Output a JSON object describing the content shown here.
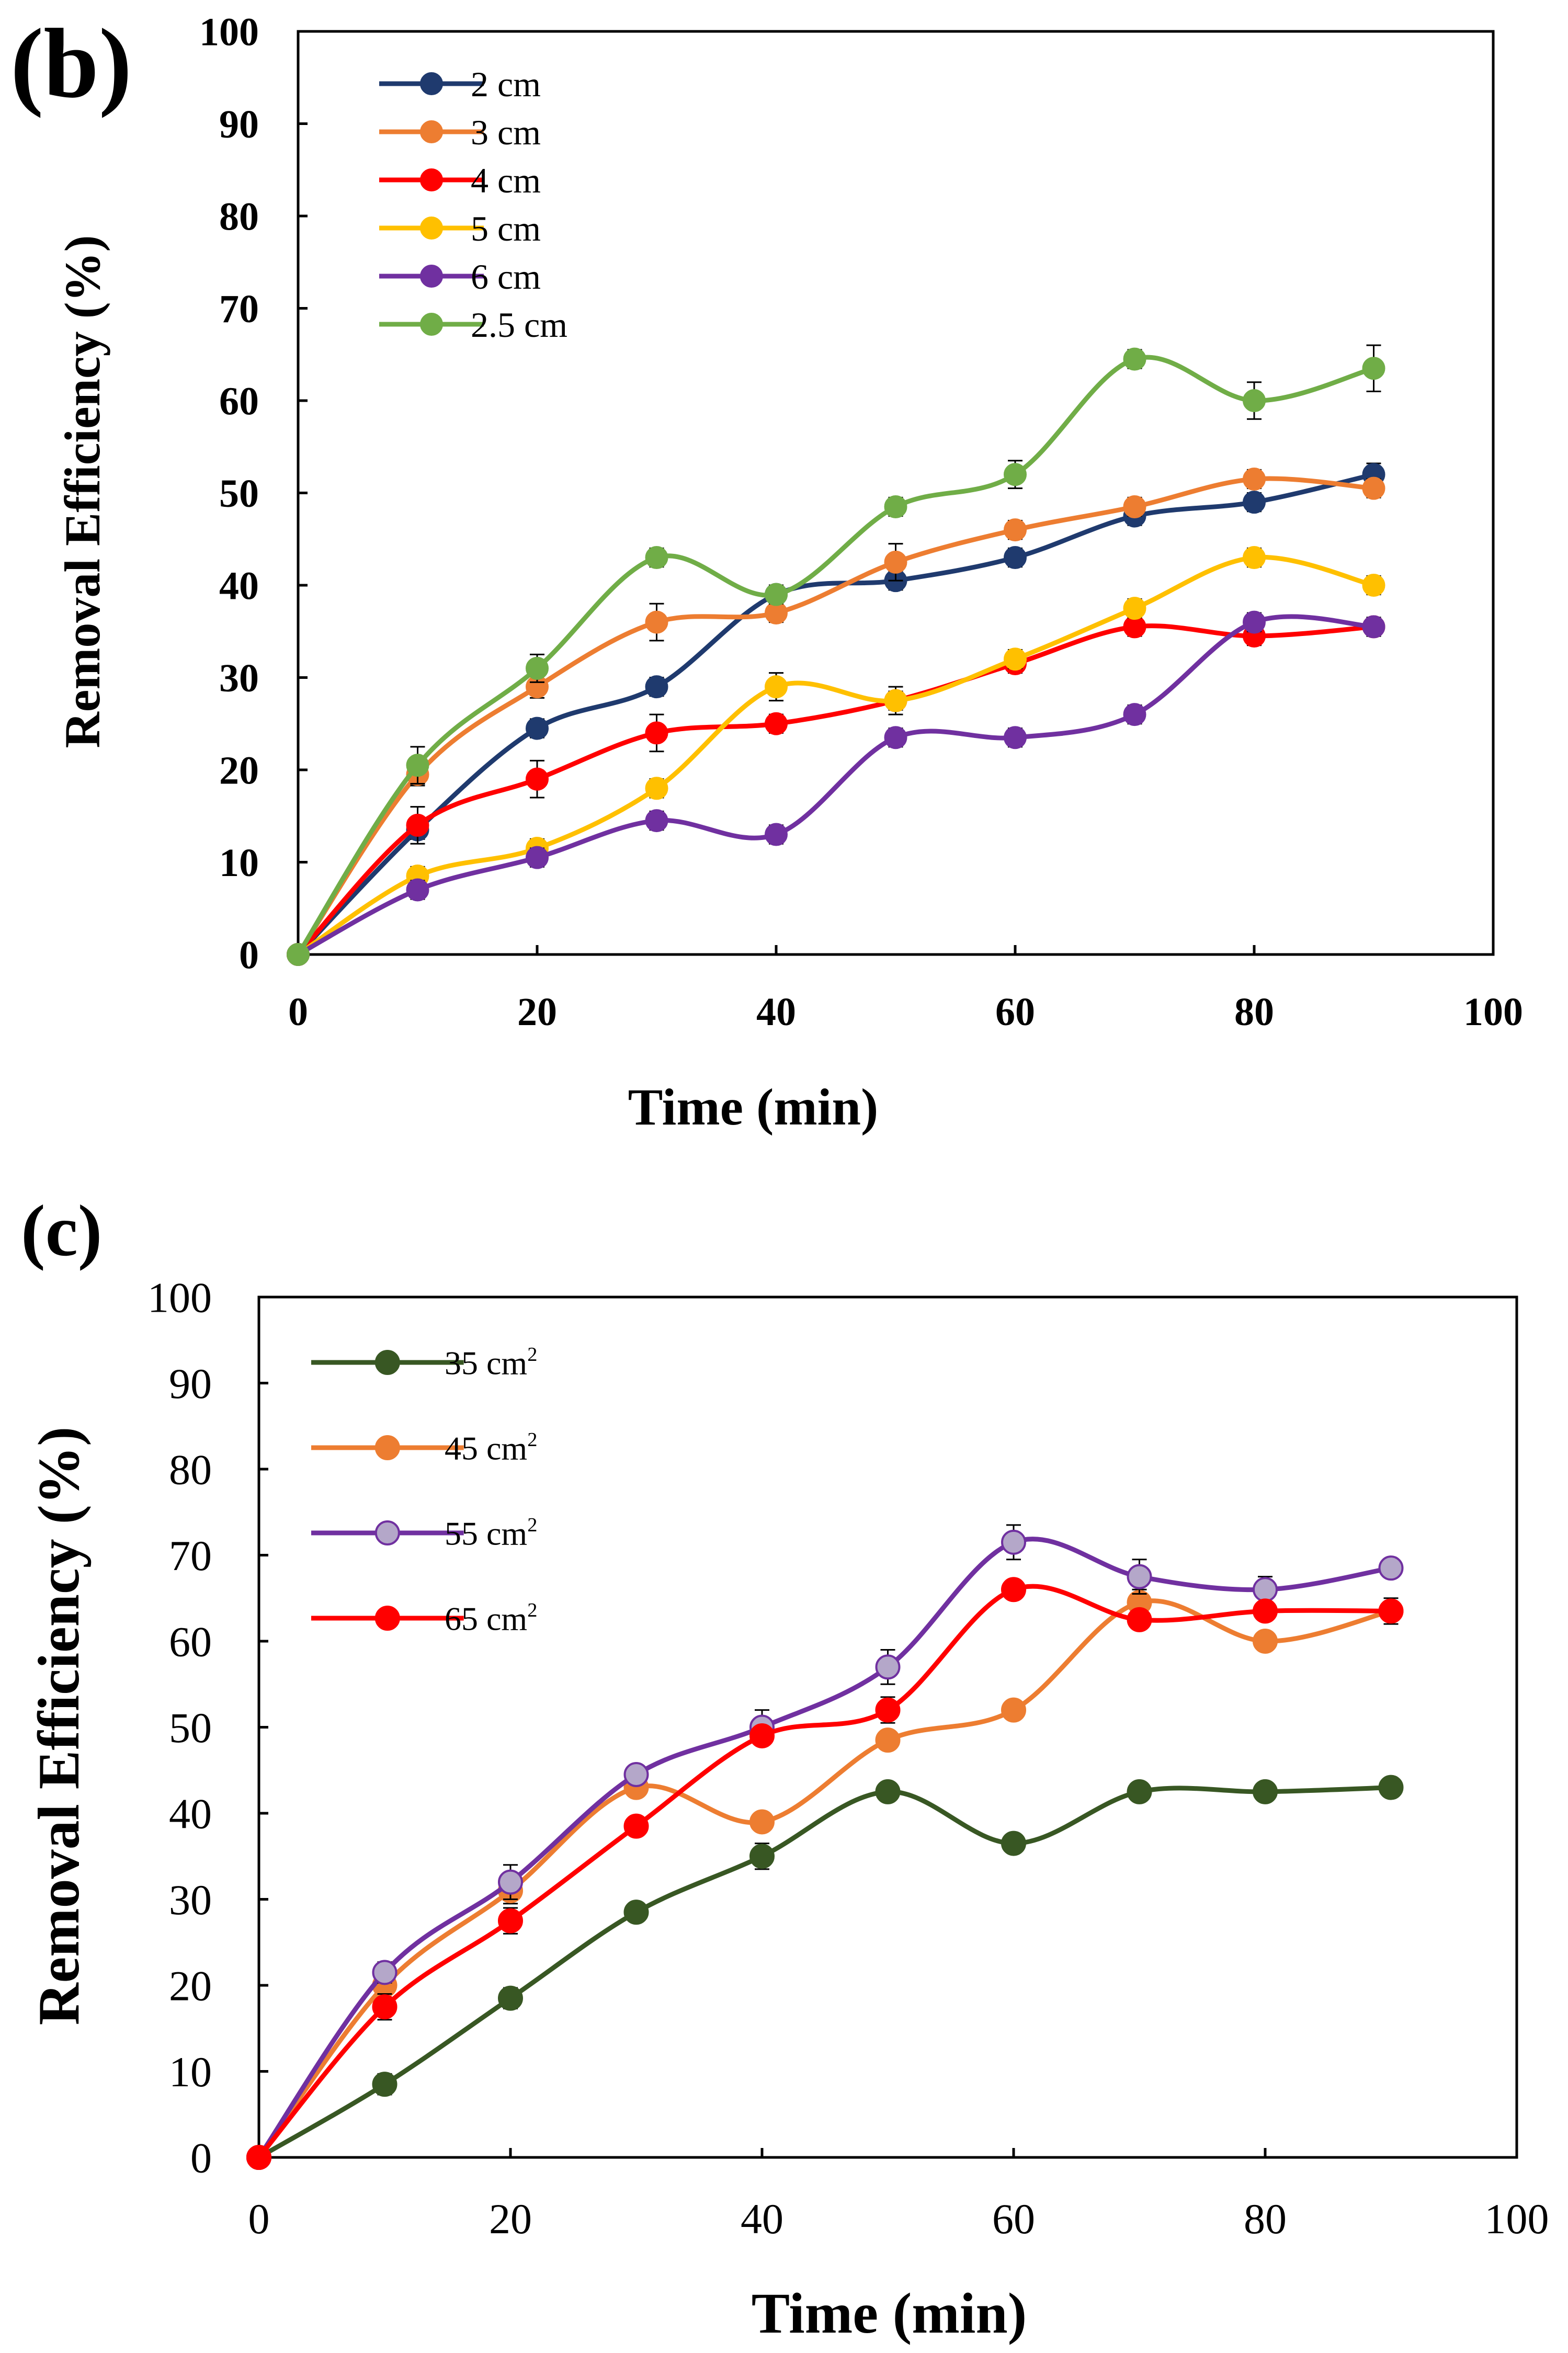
{
  "chart_data": [
    {
      "type": "line",
      "panel_label": "(b)",
      "xlabel": "Time (min)",
      "ylabel": "Removal Efficiency (%)",
      "xlim": [
        0,
        100
      ],
      "ylim": [
        0,
        100
      ],
      "xticks": [
        "0",
        "20",
        "40",
        "60",
        "80",
        "100"
      ],
      "yticks": [
        "0",
        "10",
        "20",
        "30",
        "40",
        "50",
        "60",
        "70",
        "80",
        "90",
        "100"
      ],
      "grid": false,
      "legend_position": "top-left",
      "x": [
        0,
        10,
        20,
        30,
        40,
        50,
        60,
        70,
        80,
        90
      ],
      "series": [
        {
          "name": "2 cm",
          "color": "#1f3a6e",
          "values": [
            0,
            13.5,
            24.5,
            29,
            39,
            40.5,
            43,
            47.5,
            49,
            52
          ],
          "errors": [
            0,
            1.0,
            1.0,
            1.0,
            1.0,
            1.0,
            1.0,
            1.0,
            1.0,
            1.2
          ]
        },
        {
          "name": "3 cm",
          "color": "#ed7d31",
          "values": [
            0,
            19.5,
            29,
            36,
            37,
            42.5,
            46,
            48.5,
            51.5,
            50.5
          ],
          "errors": [
            0,
            1.2,
            1.2,
            2.0,
            1.0,
            2.0,
            1.0,
            1.0,
            1.0,
            1.0
          ]
        },
        {
          "name": "4 cm",
          "color": "#ff0000",
          "values": [
            0,
            14,
            19,
            24,
            25,
            27.5,
            31.5,
            35.5,
            34.5,
            35.5
          ],
          "errors": [
            0,
            2.0,
            2.0,
            2.0,
            1.0,
            1.0,
            1.0,
            1.0,
            1.0,
            1.0
          ]
        },
        {
          "name": "5 cm",
          "color": "#ffc000",
          "values": [
            0,
            8.5,
            11.5,
            18,
            29,
            27.5,
            32,
            37.5,
            43,
            40
          ],
          "errors": [
            0,
            1.0,
            1.0,
            1.0,
            1.5,
            1.5,
            1.0,
            1.0,
            1.0,
            1.0
          ]
        },
        {
          "name": "6 cm",
          "color": "#7030a0",
          "values": [
            0,
            7,
            10.5,
            14.5,
            13,
            23.5,
            23.5,
            26,
            36,
            35.5
          ],
          "errors": [
            0,
            1.0,
            1.0,
            1.0,
            1.0,
            1.0,
            1.0,
            1.0,
            1.0,
            1.0
          ]
        },
        {
          "name": "2.5 cm",
          "color": "#70ad47",
          "values": [
            0,
            20.5,
            31,
            43,
            39,
            48.5,
            52,
            64.5,
            60,
            63.5
          ],
          "errors": [
            0,
            2.0,
            1.5,
            1.0,
            1.0,
            1.0,
            1.5,
            1.0,
            2.0,
            2.5
          ]
        }
      ]
    },
    {
      "type": "line",
      "panel_label": "(c)",
      "xlabel": "Time (min)",
      "ylabel": "Removal Efficiency (%)",
      "xlim": [
        0,
        100
      ],
      "ylim": [
        0,
        100
      ],
      "xticks": [
        "0",
        "20",
        "40",
        "60",
        "80",
        "100"
      ],
      "yticks": [
        "0",
        "10",
        "20",
        "30",
        "40",
        "50",
        "60",
        "70",
        "80",
        "90",
        "100"
      ],
      "grid": false,
      "legend_position": "top-left",
      "x": [
        0,
        10,
        20,
        30,
        40,
        50,
        60,
        70,
        80,
        90
      ],
      "series": [
        {
          "name": "35 cm",
          "sup": "2",
          "color": "#385723",
          "marker_fill": "#385723",
          "values": [
            0,
            8.5,
            18.5,
            28.5,
            35,
            42.5,
            36.5,
            42.5,
            42.5,
            43
          ],
          "errors": [
            0,
            1.2,
            1.2,
            1.0,
            1.5,
            1.0,
            1.0,
            1.0,
            1.0,
            1.0
          ]
        },
        {
          "name": "45 cm",
          "sup": "2",
          "color": "#ed7d31",
          "marker_fill": "#ed7d31",
          "values": [
            0,
            20,
            31,
            43,
            39,
            48.5,
            52,
            64.5,
            60,
            63.5
          ],
          "errors": [
            0,
            1.0,
            1.5,
            1.0,
            1.0,
            1.0,
            1.0,
            1.5,
            1.0,
            1.0
          ]
        },
        {
          "name": "55 cm",
          "sup": "2",
          "color": "#7030a0",
          "marker_fill": "#b4a7c9",
          "values": [
            0,
            21.5,
            32,
            44.5,
            50,
            57,
            71.5,
            67.5,
            66,
            68.5
          ],
          "errors": [
            0,
            1.2,
            2.0,
            1.0,
            2.0,
            2.0,
            2.0,
            2.0,
            1.5,
            1.0
          ]
        },
        {
          "name": "65 cm",
          "sup": "2",
          "color": "#ff0000",
          "marker_fill": "#ff0000",
          "values": [
            0,
            17.5,
            27.5,
            38.5,
            49,
            52,
            66,
            62.5,
            63.5,
            63.5
          ],
          "errors": [
            0,
            1.5,
            1.5,
            1.0,
            1.0,
            1.5,
            1.0,
            1.0,
            1.0,
            1.5
          ]
        }
      ]
    }
  ]
}
